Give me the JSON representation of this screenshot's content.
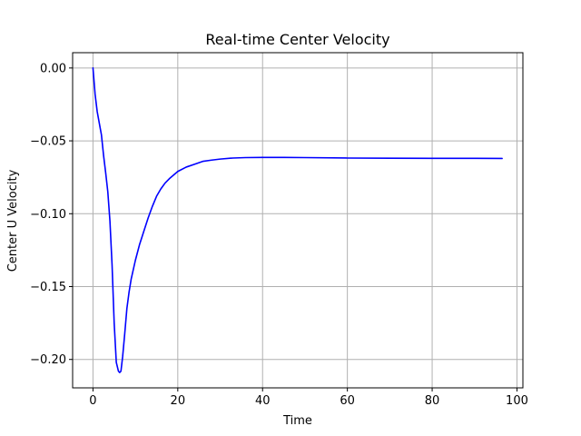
{
  "chart_data": {
    "type": "line",
    "title": "Real-time Center Velocity",
    "xlabel": "Time",
    "ylabel": "Center U Velocity",
    "xlim": [
      -4.8,
      101.4
    ],
    "ylim": [
      -0.2195,
      0.0105
    ],
    "xticks": [
      0,
      20,
      40,
      60,
      80,
      100
    ],
    "xtick_labels": [
      "0",
      "20",
      "40",
      "60",
      "80",
      "100"
    ],
    "yticks": [
      0.0,
      -0.05,
      -0.1,
      -0.15,
      -0.2
    ],
    "ytick_labels": [
      "0.00",
      "−0.05",
      "−0.10",
      "−0.15",
      "−0.20"
    ],
    "grid": true,
    "legend": "none",
    "series": [
      {
        "color": "#0000ff",
        "x": [
          0,
          0.5,
          1,
          1.5,
          2,
          2.5,
          3,
          3.5,
          4,
          4.5,
          5,
          5.5,
          6,
          6.3,
          6.6,
          7,
          7.5,
          8,
          8.5,
          9,
          10,
          11,
          12,
          13,
          14,
          15,
          16,
          17,
          18,
          20,
          22,
          24,
          26,
          28,
          30,
          33,
          36,
          40,
          45,
          50,
          60,
          70,
          80,
          90,
          96.5
        ],
        "y": [
          0.0,
          -0.018,
          -0.03,
          -0.038,
          -0.046,
          -0.06,
          -0.072,
          -0.085,
          -0.105,
          -0.135,
          -0.175,
          -0.202,
          -0.208,
          -0.209,
          -0.208,
          -0.198,
          -0.182,
          -0.165,
          -0.154,
          -0.145,
          -0.132,
          -0.121,
          -0.112,
          -0.103,
          -0.095,
          -0.088,
          -0.083,
          -0.079,
          -0.076,
          -0.071,
          -0.068,
          -0.066,
          -0.064,
          -0.0632,
          -0.0625,
          -0.0618,
          -0.0615,
          -0.0614,
          -0.0614,
          -0.0615,
          -0.0618,
          -0.0619,
          -0.062,
          -0.062,
          -0.0621
        ]
      }
    ]
  }
}
